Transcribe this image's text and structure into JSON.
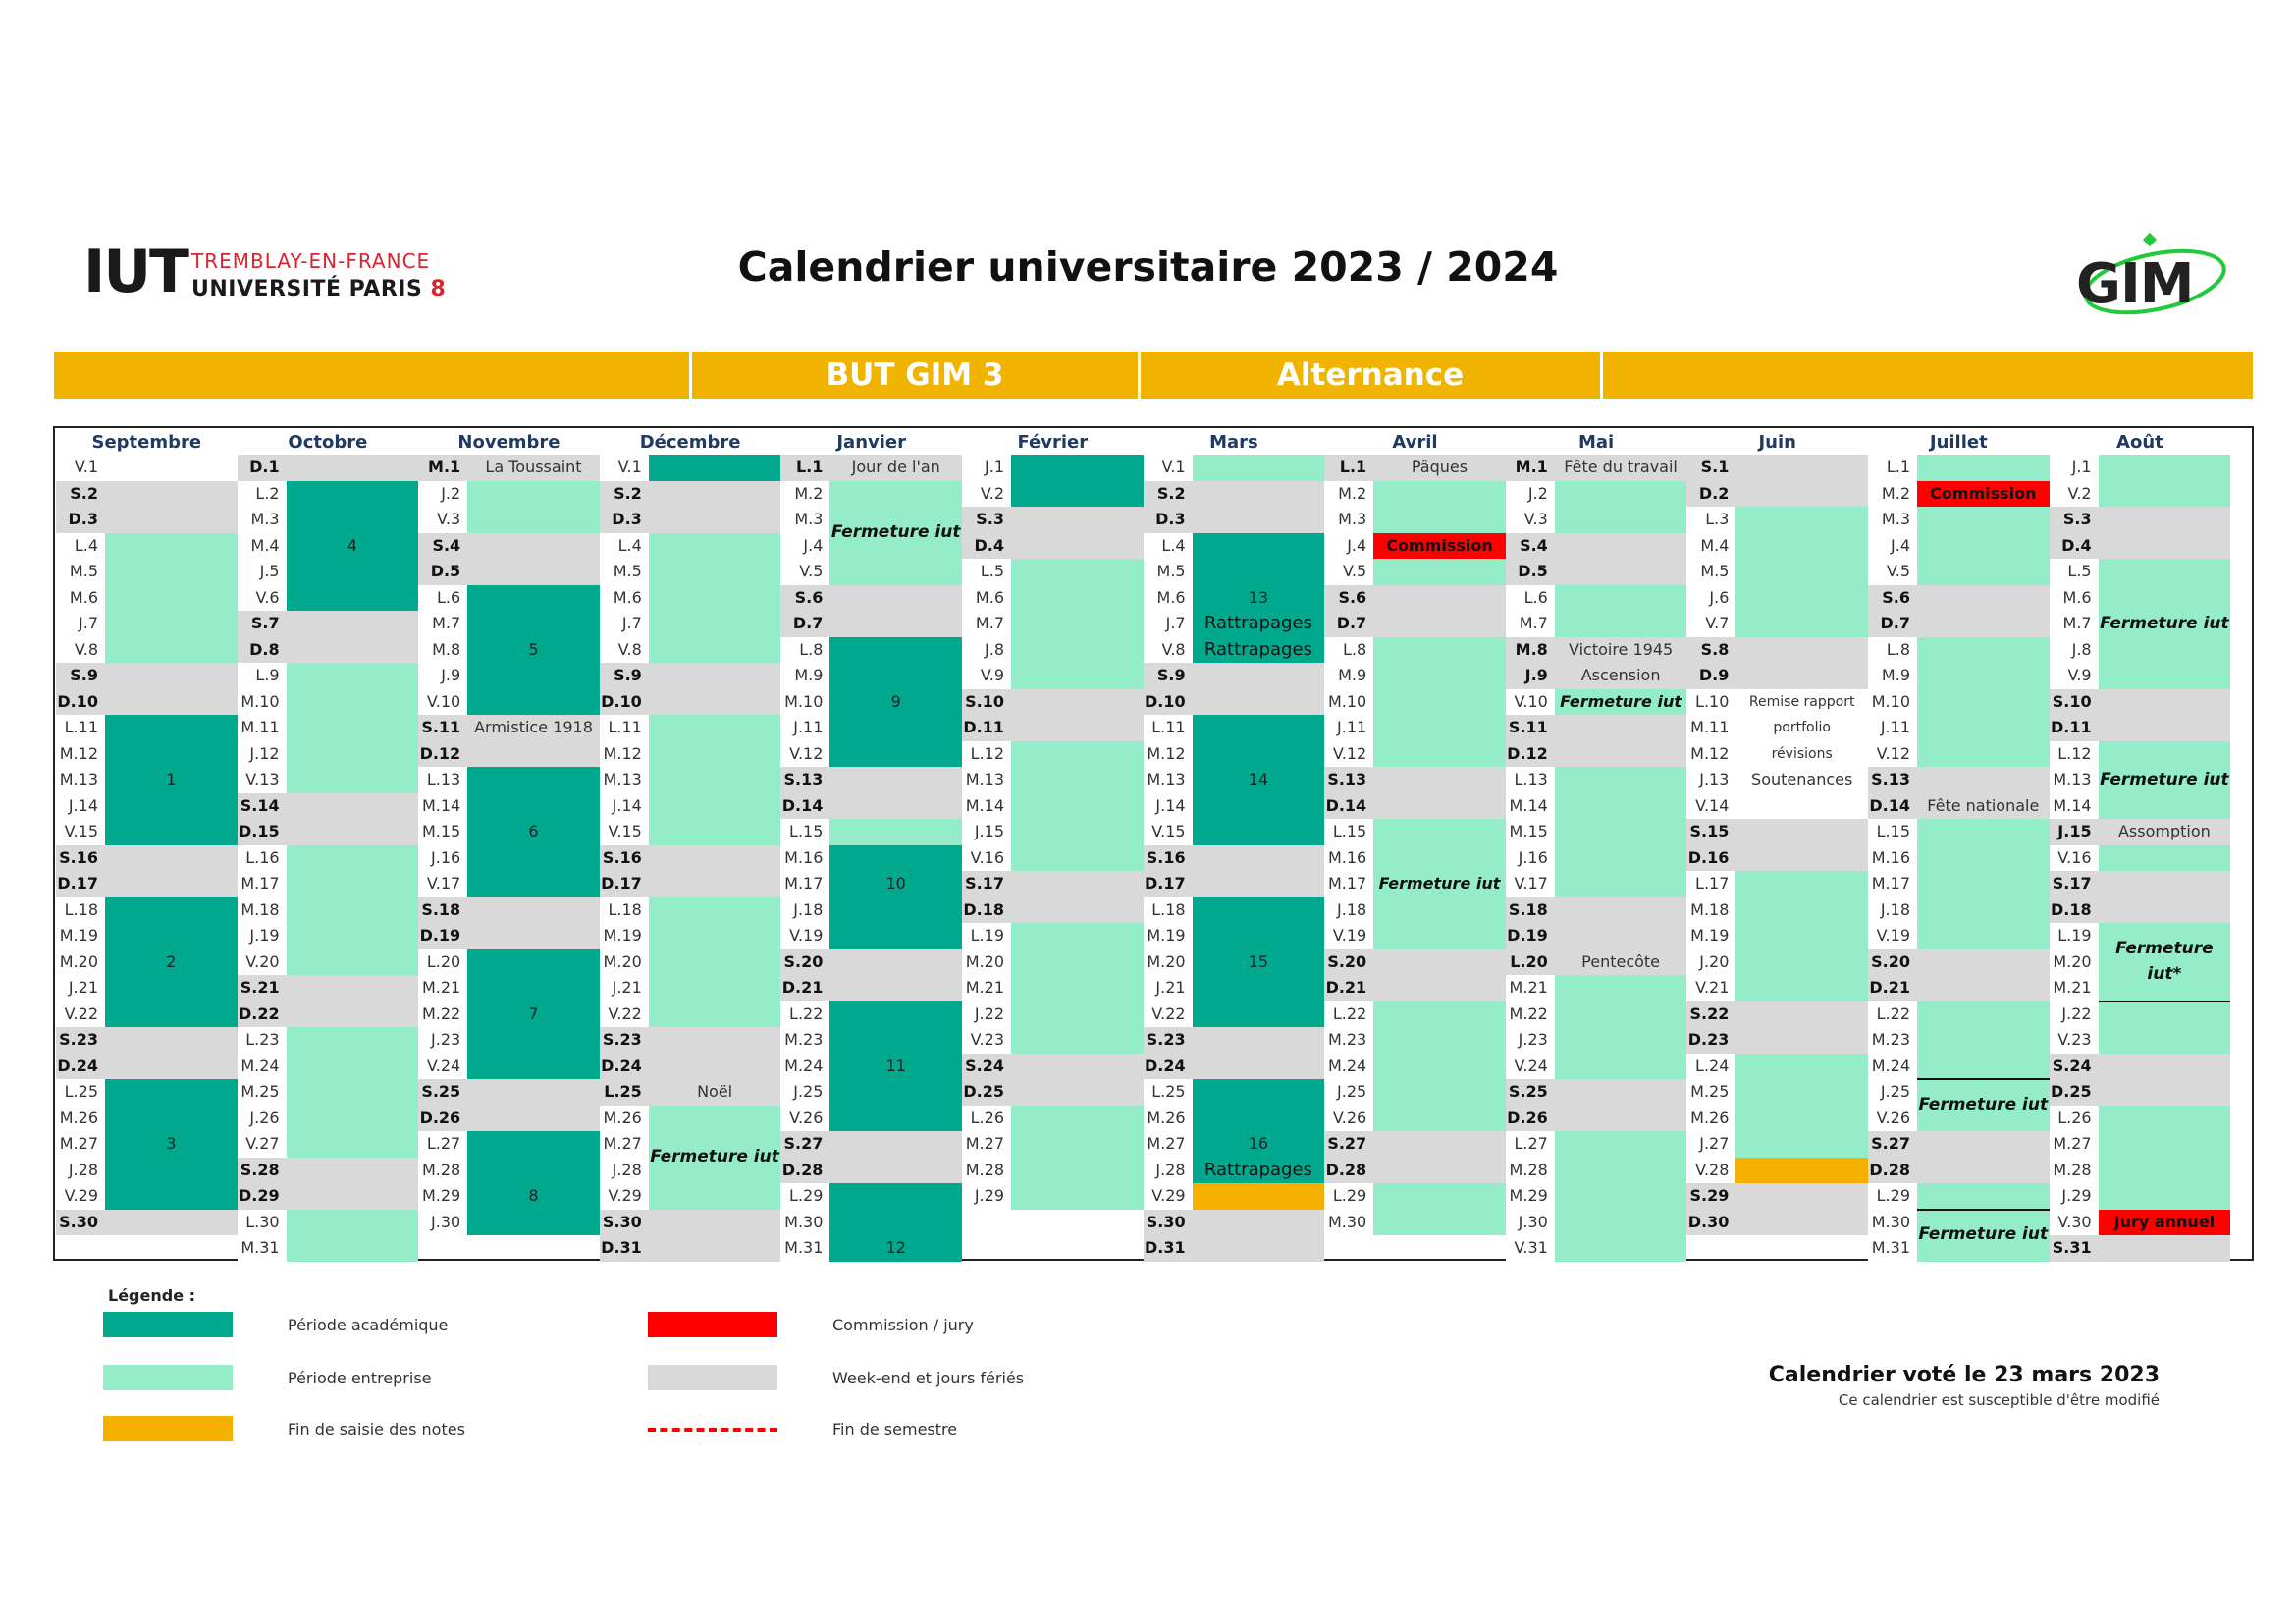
{
  "header": {
    "logo_iut": {
      "mark": "IUT",
      "line1": "TREMBLAY-EN-FRANCE",
      "line2": "UNIVERSITÉ PARIS",
      "line2_num": "8"
    },
    "title": "Calendrier universitaire 2023 / 2024",
    "logo_gim": "GIM"
  },
  "banner": {
    "program": "BUT GIM 3",
    "mode": "Alternance"
  },
  "colors": {
    "academic": "#00a88e",
    "enterprise": "#94ecc8",
    "weekend": "#d9d9d9",
    "commission": "#ff0000",
    "grades": "#f5b000",
    "semester_end": "#ff0000",
    "banner": "#f0b400"
  },
  "months": [
    {
      "name": "Septembre",
      "days": [
        "V.1",
        "S.2",
        "D.3",
        "L.4",
        "M.5",
        "M.6",
        "J.7",
        "V.8",
        "S.9",
        "D.10",
        "L.11",
        "M.12",
        "M.13",
        "J.14",
        "V.15",
        "S.16",
        "D.17",
        "L.18",
        "M.19",
        "M.20",
        "J.21",
        "V.22",
        "S.23",
        "D.24",
        "L.25",
        "M.26",
        "M.27",
        "J.28",
        "V.29",
        "S.30"
      ],
      "fills": [
        "w",
        "g",
        "g",
        "e",
        "e",
        "e",
        "e",
        "e",
        "g",
        "g",
        "a",
        "a",
        "a",
        "a",
        "a",
        "g",
        "g",
        "a",
        "a",
        "a",
        "a",
        "a",
        "g",
        "g",
        "a",
        "a",
        "a",
        "a",
        "a",
        "g"
      ],
      "labels": [],
      "weeks": [
        {
          "r": 13,
          "t": "1"
        },
        {
          "r": 20,
          "t": "2"
        },
        {
          "r": 27,
          "t": "3"
        }
      ]
    },
    {
      "name": "Octobre",
      "days": [
        "D.1",
        "L.2",
        "M.3",
        "M.4",
        "J.5",
        "V.6",
        "S.7",
        "D.8",
        "L.9",
        "M.10",
        "M.11",
        "J.12",
        "V.13",
        "S.14",
        "D.15",
        "L.16",
        "M.17",
        "M.18",
        "J.19",
        "V.20",
        "S.21",
        "D.22",
        "L.23",
        "M.24",
        "M.25",
        "J.26",
        "V.27",
        "S.28",
        "D.29",
        "L.30",
        "M.31"
      ],
      "fills": [
        "g",
        "a",
        "a",
        "a",
        "a",
        "a",
        "g",
        "g",
        "e",
        "e",
        "e",
        "e",
        "e",
        "g",
        "g",
        "e",
        "e",
        "e",
        "e",
        "e",
        "g",
        "g",
        "e",
        "e",
        "e",
        "e",
        "e",
        "g",
        "g",
        "e",
        "e"
      ],
      "labels": [],
      "weeks": [
        {
          "r": 4,
          "t": "4"
        }
      ]
    },
    {
      "name": "Novembre",
      "days": [
        "M.1",
        "J.2",
        "V.3",
        "S.4",
        "D.5",
        "L.6",
        "M.7",
        "M.8",
        "J.9",
        "V.10",
        "S.11",
        "D.12",
        "L.13",
        "M.14",
        "M.15",
        "J.16",
        "V.17",
        "S.18",
        "D.19",
        "L.20",
        "M.21",
        "M.22",
        "J.23",
        "V.24",
        "S.25",
        "D.26",
        "L.27",
        "M.28",
        "M.29",
        "J.30"
      ],
      "fills": [
        "g",
        "e",
        "e",
        "g",
        "g",
        "a",
        "a",
        "a",
        "a",
        "a",
        "g",
        "g",
        "a",
        "a",
        "a",
        "a",
        "a",
        "g",
        "g",
        "a",
        "a",
        "a",
        "a",
        "a",
        "g",
        "g",
        "a",
        "a",
        "a",
        "a"
      ],
      "labels": [
        {
          "r": 1,
          "t": "La Toussaint",
          "c": ""
        },
        {
          "r": 11,
          "t": "Armistice 1918",
          "c": ""
        }
      ],
      "weeks": [
        {
          "r": 8,
          "t": "5"
        },
        {
          "r": 15,
          "t": "6"
        },
        {
          "r": 22,
          "t": "7"
        },
        {
          "r": 29,
          "t": "8"
        }
      ]
    },
    {
      "name": "Décembre",
      "days": [
        "V.1",
        "S.2",
        "D.3",
        "L.4",
        "M.5",
        "M.6",
        "J.7",
        "V.8",
        "S.9",
        "D.10",
        "L.11",
        "M.12",
        "M.13",
        "J.14",
        "V.15",
        "S.16",
        "D.17",
        "L.18",
        "M.19",
        "M.20",
        "J.21",
        "V.22",
        "S.23",
        "D.24",
        "L.25",
        "M.26",
        "M.27",
        "J.28",
        "V.29",
        "S.30",
        "D.31"
      ],
      "fills": [
        "a",
        "g",
        "g",
        "e",
        "e",
        "e",
        "e",
        "e",
        "g",
        "g",
        "e",
        "e",
        "e",
        "e",
        "e",
        "g",
        "g",
        "e",
        "e",
        "e",
        "e",
        "e",
        "g",
        "g",
        "g",
        "e",
        "e",
        "e",
        "e",
        "g",
        "g"
      ],
      "labels": [
        {
          "r": 25,
          "t": "Noël",
          "c": ""
        }
      ],
      "blocks": [
        {
          "r1": 26,
          "r2": 29,
          "t": "Fermeture iut"
        }
      ],
      "weeks": []
    },
    {
      "name": "Janvier",
      "days": [
        "L.1",
        "M.2",
        "M.3",
        "J.4",
        "V.5",
        "S.6",
        "D.7",
        "L.8",
        "M.9",
        "M.10",
        "J.11",
        "V.12",
        "S.13",
        "D.14",
        "L.15",
        "M.16",
        "M.17",
        "J.18",
        "V.19",
        "S.20",
        "D.21",
        "L.22",
        "M.23",
        "M.24",
        "J.25",
        "V.26",
        "S.27",
        "D.28",
        "L.29",
        "M.30",
        "M.31"
      ],
      "fills": [
        "g",
        "e",
        "e",
        "e",
        "e",
        "g",
        "g",
        "a",
        "a",
        "a",
        "a",
        "a",
        "g",
        "g",
        "e",
        "a",
        "a",
        "a",
        "a",
        "g",
        "g",
        "a",
        "a",
        "a",
        "a",
        "a",
        "g",
        "g",
        "a",
        "a",
        "a"
      ],
      "labels": [
        {
          "r": 1,
          "t": "Jour de l'an",
          "c": ""
        }
      ],
      "blocks": [
        {
          "r1": 2,
          "r2": 5,
          "t": "Fermeture iut"
        }
      ],
      "weeks": [
        {
          "r": 10,
          "t": "9"
        },
        {
          "r": 17,
          "t": "10"
        },
        {
          "r": 24,
          "t": "11"
        },
        {
          "r": 31,
          "t": "12"
        }
      ]
    },
    {
      "name": "Février",
      "days": [
        "J.1",
        "V.2",
        "S.3",
        "D.4",
        "L.5",
        "M.6",
        "M.7",
        "J.8",
        "V.9",
        "S.10",
        "D.11",
        "L.12",
        "M.13",
        "M.14",
        "J.15",
        "V.16",
        "S.17",
        "D.18",
        "L.19",
        "M.20",
        "M.21",
        "J.22",
        "V.23",
        "S.24",
        "D.25",
        "L.26",
        "M.27",
        "M.28",
        "J.29"
      ],
      "fills": [
        "a",
        "a",
        "g",
        "g",
        "e",
        "e",
        "e",
        "e",
        "e",
        "g",
        "g",
        "e",
        "e",
        "e",
        "e",
        "e",
        "g",
        "g",
        "e",
        "e",
        "e",
        "e",
        "e",
        "g",
        "g",
        "e",
        "e",
        "e",
        "e"
      ],
      "labels": [],
      "weeks": []
    },
    {
      "name": "Mars",
      "days": [
        "V.1",
        "S.2",
        "D.3",
        "L.4",
        "M.5",
        "M.6",
        "J.7",
        "V.8",
        "S.9",
        "D.10",
        "L.11",
        "M.12",
        "M.13",
        "J.14",
        "V.15",
        "S.16",
        "D.17",
        "L.18",
        "M.19",
        "M.20",
        "J.21",
        "V.22",
        "S.23",
        "D.24",
        "L.25",
        "M.26",
        "M.27",
        "J.28",
        "V.29",
        "S.30",
        "D.31"
      ],
      "fills": [
        "e",
        "g",
        "g",
        "a",
        "a",
        "a",
        "a",
        "a",
        "g",
        "g",
        "a",
        "a",
        "a",
        "a",
        "a",
        "g",
        "g",
        "a",
        "a",
        "a",
        "a",
        "a",
        "g",
        "g",
        "a",
        "a",
        "a",
        "a",
        "o",
        "g",
        "g"
      ],
      "labels": [
        {
          "r": 7,
          "t": "Rattrapages",
          "c": "big"
        },
        {
          "r": 8,
          "t": "Rattrapages",
          "c": "big"
        },
        {
          "r": 28,
          "t": "Rattrapages",
          "c": "big"
        }
      ],
      "weeks": [
        {
          "r": 6,
          "t": "13"
        },
        {
          "r": 13,
          "t": "14"
        },
        {
          "r": 20,
          "t": "15"
        },
        {
          "r": 27,
          "t": "16"
        }
      ]
    },
    {
      "name": "Avril",
      "days": [
        "L.1",
        "M.2",
        "M.3",
        "J.4",
        "V.5",
        "S.6",
        "D.7",
        "L.8",
        "M.9",
        "M.10",
        "J.11",
        "V.12",
        "S.13",
        "D.14",
        "L.15",
        "M.16",
        "M.17",
        "J.18",
        "V.19",
        "S.20",
        "D.21",
        "L.22",
        "M.23",
        "M.24",
        "J.25",
        "V.26",
        "S.27",
        "D.28",
        "L.29",
        "M.30"
      ],
      "fills": [
        "g",
        "e",
        "e",
        "r",
        "e",
        "g",
        "g",
        "e",
        "e",
        "e",
        "e",
        "e",
        "g",
        "g",
        "e",
        "e",
        "e",
        "e",
        "e",
        "g",
        "g",
        "e",
        "e",
        "e",
        "e",
        "e",
        "g",
        "g",
        "e",
        "e"
      ],
      "labels": [
        {
          "r": 1,
          "t": "Pâques",
          "c": ""
        },
        {
          "r": 4,
          "t": "Commission",
          "c": "red"
        },
        {
          "r": 17,
          "t": "Fermeture iut",
          "c": "bi"
        }
      ],
      "weeks": []
    },
    {
      "name": "Mai",
      "days": [
        "M.1",
        "J.2",
        "V.3",
        "S.4",
        "D.5",
        "L.6",
        "M.7",
        "M.8",
        "J.9",
        "V.10",
        "S.11",
        "D.12",
        "L.13",
        "M.14",
        "M.15",
        "J.16",
        "V.17",
        "S.18",
        "D.19",
        "L.20",
        "M.21",
        "M.22",
        "J.23",
        "V.24",
        "S.25",
        "D.26",
        "L.27",
        "M.28",
        "M.29",
        "J.30",
        "V.31"
      ],
      "fills": [
        "g",
        "e",
        "e",
        "g",
        "g",
        "e",
        "e",
        "g",
        "g",
        "e",
        "g",
        "g",
        "e",
        "e",
        "e",
        "e",
        "e",
        "g",
        "g",
        "g",
        "e",
        "e",
        "e",
        "e",
        "g",
        "g",
        "e",
        "e",
        "e",
        "e",
        "e"
      ],
      "labels": [
        {
          "r": 1,
          "t": "Fête du travail",
          "c": ""
        },
        {
          "r": 8,
          "t": "Victoire 1945",
          "c": ""
        },
        {
          "r": 9,
          "t": "Ascension",
          "c": ""
        },
        {
          "r": 10,
          "t": "Fermeture iut",
          "c": "bi"
        },
        {
          "r": 20,
          "t": "Pentecôte",
          "c": ""
        }
      ],
      "weeks": []
    },
    {
      "name": "Juin",
      "days": [
        "S.1",
        "D.2",
        "L.3",
        "M.4",
        "M.5",
        "J.6",
        "V.7",
        "S.8",
        "D.9",
        "L.10",
        "M.11",
        "M.12",
        "J.13",
        "V.14",
        "S.15",
        "D.16",
        "L.17",
        "M.18",
        "M.19",
        "J.20",
        "V.21",
        "S.22",
        "D.23",
        "L.24",
        "M.25",
        "M.26",
        "J.27",
        "V.28",
        "S.29",
        "D.30"
      ],
      "fills": [
        "g",
        "g",
        "e",
        "e",
        "e",
        "e",
        "e",
        "g",
        "g",
        "w",
        "w",
        "w",
        "w",
        "w",
        "g",
        "g",
        "e",
        "e",
        "e",
        "e",
        "e",
        "g",
        "g",
        "e",
        "e",
        "e",
        "e",
        "o",
        "g",
        "g"
      ],
      "labels": [
        {
          "r": 10,
          "t": "Remise rapport",
          "c": "sm"
        },
        {
          "r": 11,
          "t": "portfolio",
          "c": "sm"
        },
        {
          "r": 12,
          "t": "révisions",
          "c": "sm"
        },
        {
          "r": 13,
          "t": "Soutenances",
          "c": ""
        }
      ],
      "weeks": []
    },
    {
      "name": "Juillet",
      "days": [
        "L.1",
        "M.2",
        "M.3",
        "J.4",
        "V.5",
        "S.6",
        "D.7",
        "L.8",
        "M.9",
        "M.10",
        "J.11",
        "V.12",
        "S.13",
        "D.14",
        "L.15",
        "M.16",
        "M.17",
        "J.18",
        "V.19",
        "S.20",
        "D.21",
        "L.22",
        "M.23",
        "M.24",
        "J.25",
        "V.26",
        "S.27",
        "D.28",
        "L.29",
        "M.30",
        "M.31"
      ],
      "fills": [
        "e",
        "r",
        "e",
        "e",
        "e",
        "g",
        "g",
        "e",
        "e",
        "e",
        "e",
        "e",
        "g",
        "g",
        "e",
        "e",
        "e",
        "e",
        "e",
        "g",
        "g",
        "e",
        "e",
        "e",
        "e",
        "e",
        "g",
        "g",
        "e",
        "e",
        "e"
      ],
      "labels": [
        {
          "r": 2,
          "t": "Commission",
          "c": "red"
        },
        {
          "r": 14,
          "t": "Fête nationale",
          "c": ""
        }
      ],
      "blocks": [
        {
          "r1": 25,
          "r2": 26,
          "t": "Fermeture iut"
        },
        {
          "r1": 30,
          "r2": 31,
          "t": "Fermeture iut"
        }
      ],
      "weeks": []
    },
    {
      "name": "Août",
      "days": [
        "J.1",
        "V.2",
        "S.3",
        "D.4",
        "L.5",
        "M.6",
        "M.7",
        "J.8",
        "V.9",
        "S.10",
        "D.11",
        "L.12",
        "M.13",
        "M.14",
        "J.15",
        "V.16",
        "S.17",
        "D.18",
        "L.19",
        "M.20",
        "M.21",
        "J.22",
        "V.23",
        "S.24",
        "D.25",
        "L.26",
        "M.27",
        "M.28",
        "J.29",
        "V.30",
        "S.31"
      ],
      "fills": [
        "e",
        "e",
        "g",
        "g",
        "e",
        "e",
        "e",
        "e",
        "e",
        "g",
        "g",
        "e",
        "e",
        "e",
        "g",
        "e",
        "g",
        "g",
        "e",
        "e",
        "e",
        "e",
        "e",
        "g",
        "g",
        "e",
        "e",
        "e",
        "e",
        "r",
        "g"
      ],
      "labels": [
        {
          "r": 15,
          "t": "Assomption",
          "c": ""
        },
        {
          "r": 30,
          "t": "Jury annuel",
          "c": "red"
        }
      ],
      "blocks": [
        {
          "r1": 5,
          "r2": 9,
          "t": "Fermeture iut"
        },
        {
          "r1": 12,
          "r2": 14,
          "t": "Fermeture iut"
        },
        {
          "r1": 19,
          "r2": 21,
          "t": "Fermeture iut*"
        }
      ],
      "weeks": []
    }
  ],
  "legend": {
    "title": "Légende :",
    "academic": "Période académique",
    "enterprise": "Période entreprise",
    "grades": "Fin de saisie des notes",
    "commission": "Commission / jury",
    "weekend": "Week-end et jours fériés",
    "semester_end": "Fin de semestre"
  },
  "footer": {
    "voted": "Calendrier voté le 23 mars 2023",
    "note": "Ce calendrier est susceptible d'être modifié"
  }
}
